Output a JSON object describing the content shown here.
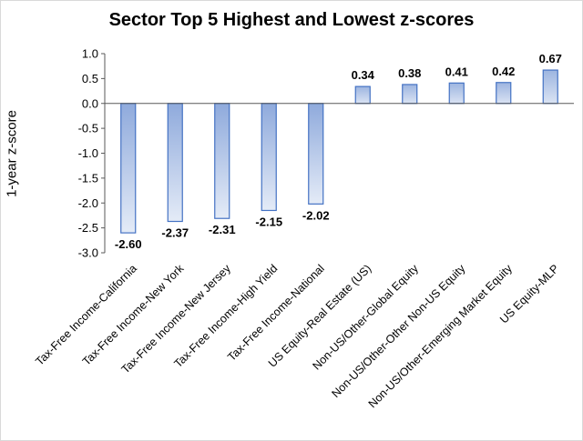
{
  "chart_data": {
    "type": "bar",
    "title": "Sector Top 5 Highest and Lowest z-scores",
    "xlabel": "",
    "ylabel": "1-year z-score",
    "ylim": [
      -3.0,
      1.0
    ],
    "yticks": [
      "1.0",
      "0.5",
      "0.0",
      "-0.5",
      "-1.0",
      "-1.5",
      "-2.0",
      "-2.5",
      "-3.0"
    ],
    "categories": [
      "Tax-Free Income-California",
      "Tax-Free Income-New York",
      "Tax-Free Income-New Jersey",
      "Tax-Free Income-High Yield",
      "Tax-Free Income-National",
      "US Equity-Real Estate (US)",
      "Non-US/Other-Global Equity",
      "Non-US/Other-Other Non-US Equity",
      "Non-US/Other-Emerging Market Equity",
      "US Equity-MLP"
    ],
    "values": [
      -2.6,
      -2.37,
      -2.31,
      -2.15,
      -2.02,
      0.34,
      0.38,
      0.41,
      0.42,
      0.67
    ],
    "data_labels": [
      "-2.60",
      "-2.37",
      "-2.31",
      "-2.15",
      "-2.02",
      "0.34",
      "0.38",
      "0.41",
      "0.42",
      "0.67"
    ],
    "grid": false,
    "legend": "none",
    "colors": {
      "bar_stroke": "#4472c4",
      "bar_fill_dark": "#8faadc",
      "bar_fill_light": "#dae3f3",
      "axis": "#595959"
    }
  }
}
